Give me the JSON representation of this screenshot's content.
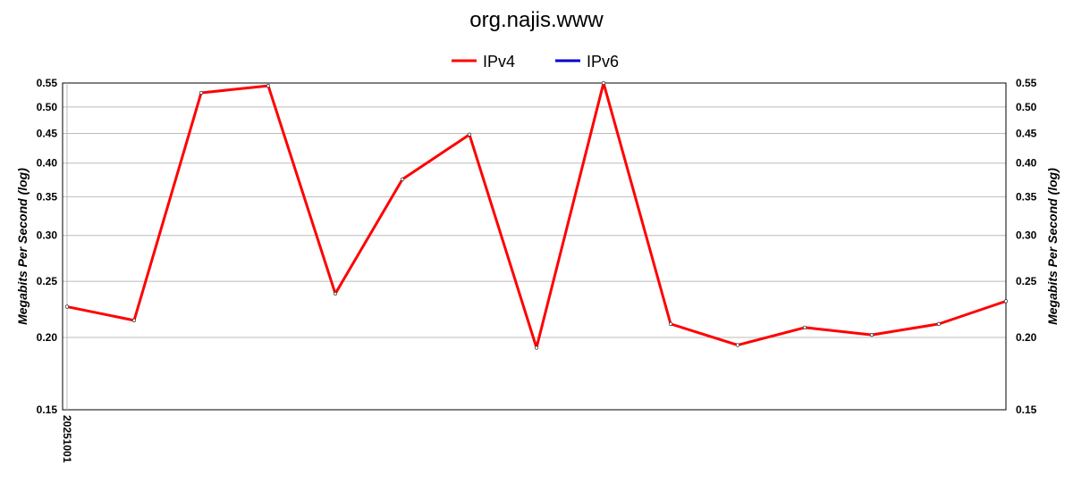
{
  "chart_data": {
    "type": "line",
    "title": "org.najis.www",
    "ylabel": "Megabits Per Second (log)",
    "yscale": "log",
    "ylim": [
      0.15,
      0.55
    ],
    "yticks": [
      "0.15",
      "0.20",
      "0.25",
      "0.30",
      "0.35",
      "0.40",
      "0.45",
      "0.50",
      "0.55"
    ],
    "xtick_labels": [
      "20251001"
    ],
    "grid": true,
    "legend_position": "top",
    "series": [
      {
        "name": "IPv4",
        "color": "#ff0000",
        "values": [
          0.226,
          0.214,
          0.529,
          0.544,
          0.238,
          0.375,
          0.448,
          0.192,
          0.55,
          0.211,
          0.194,
          0.208,
          0.202,
          0.211,
          0.231
        ]
      },
      {
        "name": "IPv6",
        "color": "#0000cc",
        "values": []
      }
    ]
  }
}
